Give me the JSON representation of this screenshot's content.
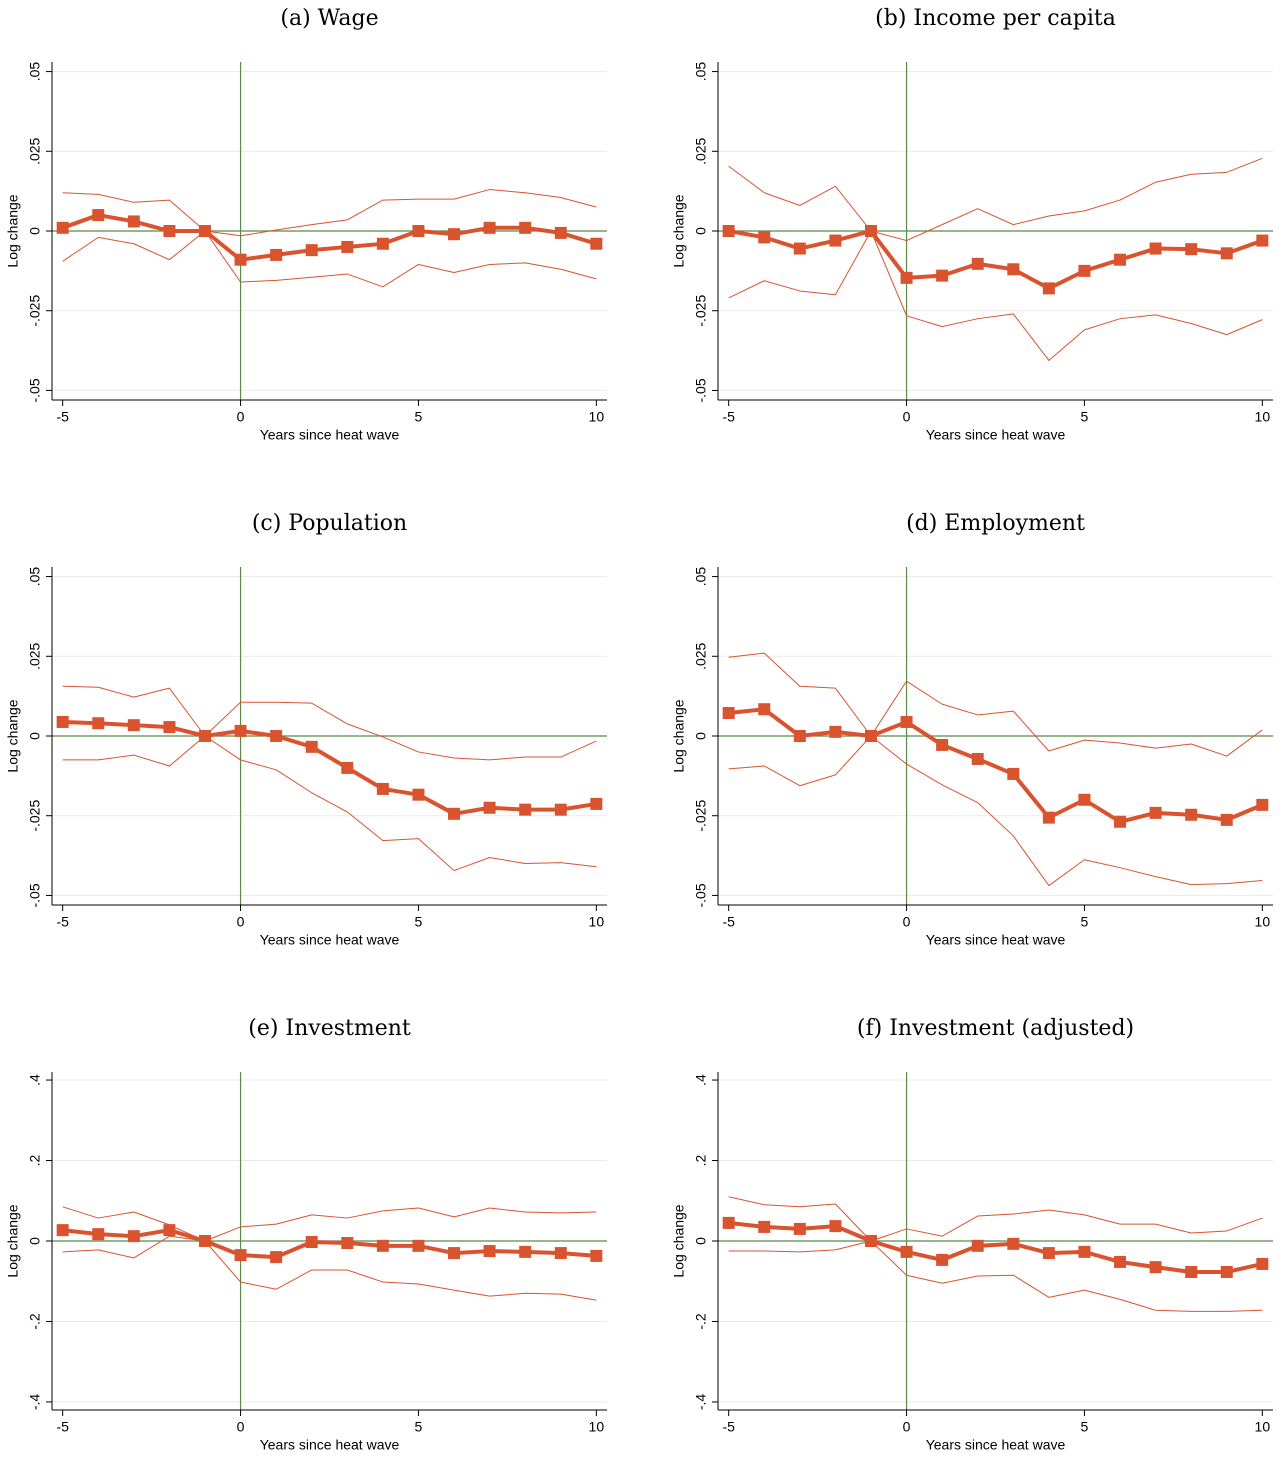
{
  "chart_data": [
    {
      "type": "line",
      "title": "(a) Wage",
      "xlabel": "Years since heat wave",
      "ylabel": "Log change",
      "x": [
        -5,
        -4,
        -3,
        -2,
        -1,
        0,
        1,
        2,
        3,
        4,
        5,
        6,
        7,
        8,
        9,
        10
      ],
      "xlim": [
        -5.3,
        10.3
      ],
      "xticks": [
        -5,
        0,
        5,
        10
      ],
      "ylim": [
        -0.053,
        0.053
      ],
      "yticks": [
        {
          "value": -0.05,
          "label": "-.05"
        },
        {
          "value": -0.025,
          "label": "-.025"
        },
        0,
        {
          "value": 0.025,
          "label": ".025"
        },
        {
          "value": 0.05,
          "label": ".05"
        }
      ],
      "grid": true,
      "reference_lines": {
        "x": 0,
        "y": 0,
        "color": "#5b8a4b"
      },
      "series": [
        {
          "color": "#d9532f",
          "line_width": 4,
          "marker": "square",
          "values": [
            0.001,
            0.005,
            0.003,
            0,
            0,
            -0.009,
            -0.0075,
            -0.006,
            -0.005,
            -0.004,
            0,
            -0.001,
            0.001,
            0.001,
            -0.0006,
            -0.004
          ]
        },
        {
          "color": "#d9532f",
          "line_width": 1,
          "values": [
            0.012,
            0.0115,
            0.009,
            0.0097,
            0,
            -0.0015,
            0.0003,
            0.002,
            0.0035,
            0.0097,
            0.01,
            0.01,
            0.013,
            0.012,
            0.0105,
            0.0075
          ]
        },
        {
          "color": "#d9532f",
          "line_width": 1,
          "values": [
            -0.0095,
            -0.002,
            -0.004,
            -0.009,
            0,
            -0.016,
            -0.0155,
            -0.0145,
            -0.0135,
            -0.0175,
            -0.0105,
            -0.013,
            -0.0105,
            -0.01,
            -0.012,
            -0.015
          ]
        }
      ]
    },
    {
      "type": "line",
      "title": "(b) Income per capita",
      "xlabel": "Years since heat wave",
      "ylabel": "Log change",
      "x": [
        -5,
        -4,
        -3,
        -2,
        -1,
        0,
        1,
        2,
        3,
        4,
        5,
        6,
        7,
        8,
        9,
        10
      ],
      "xlim": [
        -5.3,
        10.3
      ],
      "xticks": [
        -5,
        0,
        5,
        10
      ],
      "ylim": [
        -0.053,
        0.053
      ],
      "yticks": [
        {
          "value": -0.05,
          "label": "-.05"
        },
        {
          "value": -0.025,
          "label": "-.025"
        },
        0,
        {
          "value": 0.025,
          "label": ".025"
        },
        {
          "value": 0.05,
          "label": ".05"
        }
      ],
      "grid": true,
      "reference_lines": {
        "x": 0,
        "y": 0,
        "color": "#5b8a4b"
      },
      "series": [
        {
          "color": "#d9532f",
          "line_width": 4,
          "marker": "square",
          "values": [
            0,
            -0.002,
            -0.0055,
            -0.003,
            0,
            -0.0147,
            -0.014,
            -0.0103,
            -0.012,
            -0.018,
            -0.0125,
            -0.009,
            -0.0055,
            -0.0057,
            -0.007,
            -0.003
          ]
        },
        {
          "color": "#d9532f",
          "line_width": 1,
          "values": [
            0.0203,
            0.012,
            0.008,
            0.014,
            0,
            -0.003,
            0.002,
            0.007,
            0.002,
            0.0047,
            0.0063,
            0.0097,
            0.0153,
            0.0178,
            0.0184,
            0.0228
          ]
        },
        {
          "color": "#d9532f",
          "line_width": 1,
          "values": [
            -0.021,
            -0.0156,
            -0.0188,
            -0.02,
            0,
            -0.0266,
            -0.03,
            -0.0275,
            -0.026,
            -0.0406,
            -0.031,
            -0.0275,
            -0.0263,
            -0.029,
            -0.0325,
            -0.0278
          ]
        }
      ]
    },
    {
      "type": "line",
      "title": "(c) Population",
      "xlabel": "Years since heat wave",
      "ylabel": "Log change",
      "x": [
        -5,
        -4,
        -3,
        -2,
        -1,
        0,
        1,
        2,
        3,
        4,
        5,
        6,
        7,
        8,
        9,
        10
      ],
      "xlim": [
        -5.3,
        10.3
      ],
      "xticks": [
        -5,
        0,
        5,
        10
      ],
      "ylim": [
        -0.053,
        0.053
      ],
      "yticks": [
        {
          "value": -0.05,
          "label": "-.05"
        },
        {
          "value": -0.025,
          "label": "-.025"
        },
        0,
        {
          "value": 0.025,
          "label": ".025"
        },
        {
          "value": 0.05,
          "label": ".05"
        }
      ],
      "grid": true,
      "reference_lines": {
        "x": 0,
        "y": 0,
        "color": "#5b8a4b"
      },
      "series": [
        {
          "color": "#d9532f",
          "line_width": 4,
          "marker": "square",
          "values": [
            0.0044,
            0.004,
            0.0034,
            0.0028,
            0,
            0.0016,
            0,
            -0.0034,
            -0.01,
            -0.0166,
            -0.0184,
            -0.0244,
            -0.0225,
            -0.0231,
            -0.0231,
            -0.0213
          ]
        },
        {
          "color": "#d9532f",
          "line_width": 1,
          "values": [
            0.0156,
            0.0153,
            0.0122,
            0.015,
            0,
            0.0106,
            0.0106,
            0.0103,
            0.0038,
            -0.0003,
            -0.005,
            -0.0069,
            -0.0075,
            -0.0066,
            -0.0066,
            -0.0016
          ]
        },
        {
          "color": "#d9532f",
          "line_width": 1,
          "values": [
            -0.0075,
            -0.0075,
            -0.006,
            -0.0094,
            0,
            -0.0075,
            -0.0106,
            -0.0178,
            -0.0238,
            -0.0328,
            -0.0322,
            -0.0422,
            -0.0381,
            -0.04,
            -0.0397,
            -0.041
          ]
        }
      ]
    },
    {
      "type": "line",
      "title": "(d) Employment",
      "xlabel": "Years since heat wave",
      "ylabel": "Log change",
      "x": [
        -5,
        -4,
        -3,
        -2,
        -1,
        0,
        1,
        2,
        3,
        4,
        5,
        6,
        7,
        8,
        9,
        10
      ],
      "xlim": [
        -5.3,
        10.3
      ],
      "xticks": [
        -5,
        0,
        5,
        10
      ],
      "ylim": [
        -0.053,
        0.053
      ],
      "yticks": [
        {
          "value": -0.05,
          "label": "-.05"
        },
        {
          "value": -0.025,
          "label": "-.025"
        },
        0,
        {
          "value": 0.025,
          "label": ".025"
        },
        {
          "value": 0.05,
          "label": ".05"
        }
      ],
      "grid": true,
      "reference_lines": {
        "x": 0,
        "y": 0,
        "color": "#5b8a4b"
      },
      "series": [
        {
          "color": "#d9532f",
          "line_width": 4,
          "marker": "square",
          "values": [
            0.0072,
            0.0084,
            0,
            0.0013,
            0,
            0.0044,
            -0.0028,
            -0.0072,
            -0.0119,
            -0.0256,
            -0.02,
            -0.0269,
            -0.0241,
            -0.0247,
            -0.0263,
            -0.0216
          ]
        },
        {
          "color": "#d9532f",
          "line_width": 1,
          "values": [
            0.0247,
            0.026,
            0.0156,
            0.015,
            0,
            0.0172,
            0.01,
            0.0066,
            0.0078,
            -0.0047,
            -0.0013,
            -0.0022,
            -0.0038,
            -0.0025,
            -0.0063,
            0.0019
          ]
        },
        {
          "color": "#d9532f",
          "line_width": 1,
          "values": [
            -0.0103,
            -0.0094,
            -0.0156,
            -0.0122,
            0,
            -0.0088,
            -0.0153,
            -0.0209,
            -0.0313,
            -0.0469,
            -0.0388,
            -0.0413,
            -0.0441,
            -0.0466,
            -0.0463,
            -0.0453
          ]
        }
      ]
    },
    {
      "type": "line",
      "title": "(e) Investment",
      "xlabel": "Years since heat wave",
      "ylabel": "Log change",
      "x": [
        -5,
        -4,
        -3,
        -2,
        -1,
        0,
        1,
        2,
        3,
        4,
        5,
        6,
        7,
        8,
        9,
        10
      ],
      "xlim": [
        -5.3,
        10.3
      ],
      "xticks": [
        -5,
        0,
        5,
        10
      ],
      "ylim": [
        -0.42,
        0.42
      ],
      "yticks": [
        {
          "value": -0.4,
          "label": "-.4"
        },
        {
          "value": -0.2,
          "label": "-.2"
        },
        0,
        {
          "value": 0.2,
          "label": ".2"
        },
        {
          "value": 0.4,
          "label": ".4"
        }
      ],
      "grid": true,
      "reference_lines": {
        "x": 0,
        "y": 0,
        "color": "#5b8a4b"
      },
      "series": [
        {
          "color": "#d9532f",
          "line_width": 4,
          "marker": "square",
          "values": [
            0.027,
            0.017,
            0.012,
            0.027,
            0,
            -0.035,
            -0.04,
            -0.0025,
            -0.005,
            -0.012,
            -0.012,
            -0.03,
            -0.025,
            -0.027,
            -0.03,
            -0.037
          ]
        },
        {
          "color": "#d9532f",
          "line_width": 1,
          "values": [
            0.085,
            0.057,
            0.072,
            0.04,
            0,
            0.035,
            0.042,
            0.065,
            0.057,
            0.075,
            0.082,
            0.06,
            0.082,
            0.072,
            0.07,
            0.072
          ]
        },
        {
          "color": "#d9532f",
          "line_width": 1,
          "values": [
            -0.027,
            -0.022,
            -0.042,
            0.012,
            0,
            -0.102,
            -0.12,
            -0.072,
            -0.072,
            -0.102,
            -0.107,
            -0.122,
            -0.137,
            -0.13,
            -0.132,
            -0.147
          ]
        }
      ]
    },
    {
      "type": "line",
      "title": "(f) Investment (adjusted)",
      "xlabel": "Years since heat wave",
      "ylabel": "Log change",
      "x": [
        -5,
        -4,
        -3,
        -2,
        -1,
        0,
        1,
        2,
        3,
        4,
        5,
        6,
        7,
        8,
        9,
        10
      ],
      "xlim": [
        -5.3,
        10.3
      ],
      "xticks": [
        -5,
        0,
        5,
        10
      ],
      "ylim": [
        -0.42,
        0.42
      ],
      "yticks": [
        {
          "value": -0.4,
          "label": "-.4"
        },
        {
          "value": -0.2,
          "label": "-.2"
        },
        0,
        {
          "value": 0.2,
          "label": ".2"
        },
        {
          "value": 0.4,
          "label": ".4"
        }
      ],
      "grid": true,
      "reference_lines": {
        "x": 0,
        "y": 0,
        "color": "#5b8a4b"
      },
      "series": [
        {
          "color": "#d9532f",
          "line_width": 4,
          "marker": "square",
          "values": [
            0.045,
            0.035,
            0.03,
            0.037,
            0,
            -0.027,
            -0.047,
            -0.012,
            -0.007,
            -0.03,
            -0.027,
            -0.052,
            -0.065,
            -0.077,
            -0.077,
            -0.057
          ]
        },
        {
          "color": "#d9532f",
          "line_width": 1,
          "values": [
            0.11,
            0.09,
            0.085,
            0.092,
            0,
            0.03,
            0.012,
            0.062,
            0.067,
            0.077,
            0.065,
            0.042,
            0.042,
            0.02,
            0.025,
            0.057
          ]
        },
        {
          "color": "#d9532f",
          "line_width": 1,
          "values": [
            -0.025,
            -0.025,
            -0.027,
            -0.022,
            0,
            -0.085,
            -0.105,
            -0.087,
            -0.085,
            -0.14,
            -0.122,
            -0.145,
            -0.172,
            -0.175,
            -0.175,
            -0.172
          ]
        }
      ]
    }
  ]
}
